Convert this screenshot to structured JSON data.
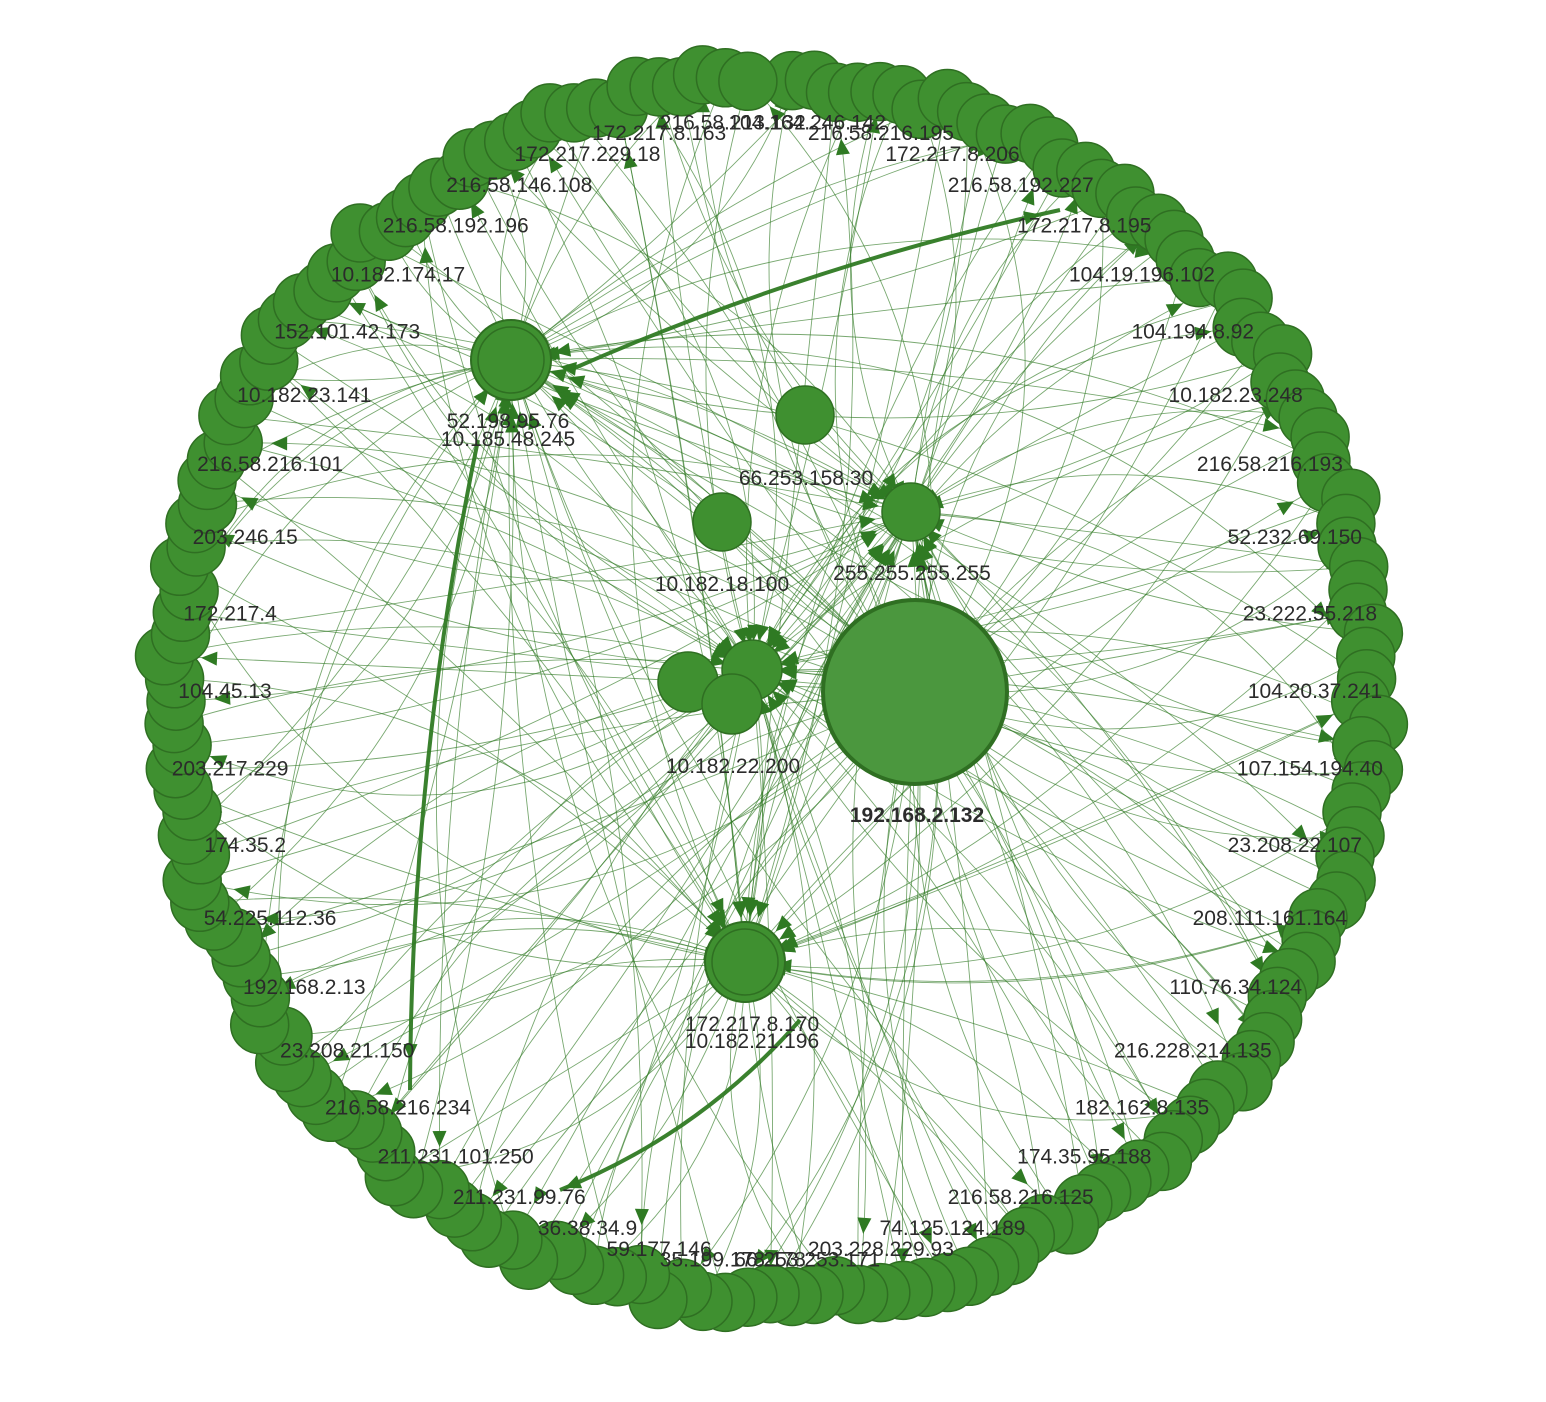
{
  "colors": {
    "node": "#3f9030",
    "edge": "#2f7a23",
    "label": "#2b2b2b"
  },
  "hub": {
    "id": "192.168.2.132",
    "label": "192.168.2.132"
  },
  "inner_nodes": [
    {
      "id": "52.198.95.76",
      "labels": [
        "52.198.95.76",
        "10.185.48.245"
      ]
    },
    {
      "id": "255.255.255.255",
      "labels": [
        "255.255.255.255"
      ]
    },
    {
      "id": "66.253.158.30",
      "labels": [
        "66.253.158.30"
      ]
    },
    {
      "id": "10.182.18.100",
      "labels": [
        "10.182.18.100"
      ]
    },
    {
      "id": "10.182.22.200",
      "labels": [
        "10.182.22.200"
      ]
    },
    {
      "id": "172.217.8.170",
      "labels": [
        "172.217.8.170",
        "10.182.21.196"
      ]
    }
  ],
  "outer_labels": [
    "104.164.246.142",
    "216.58.216.195",
    "172.217.8.206",
    "216.58.192.227",
    "172.217.8.195",
    "104.19.196.102",
    "104.194.8.92",
    "10.182.23.248",
    "216.58.216.193",
    "52.232.69.150",
    "23.222.55.218",
    "104.20.37.241",
    "107.154.194.40",
    "23.208.22.107",
    "208.111.161.164",
    "110.76.34.124",
    "216.228.214.135",
    "182.162.8.135",
    "174.35.95.188",
    "216.58.216.125",
    "74.125.124.189",
    "203.228.229.93",
    "66.253.253.171",
    "35.199.178.178",
    "59.177.146",
    "36.38.34.9",
    "211.231.99.76",
    "211.231.101.250",
    "216.58.216.234",
    "23.208.21.150",
    "192.168.2.13",
    "54.225.112.36",
    "174.35.2",
    "203.217.229",
    "104.45.13",
    "172.217.4",
    "203.246.15",
    "216.58.216.101",
    "10.182.23.141",
    "152.101.42.173",
    "10.182.174.17",
    "216.58.192.196",
    "216.58.146.108",
    "172.217.229.18",
    "172.217.8.163",
    "216.58.213.132"
  ]
}
